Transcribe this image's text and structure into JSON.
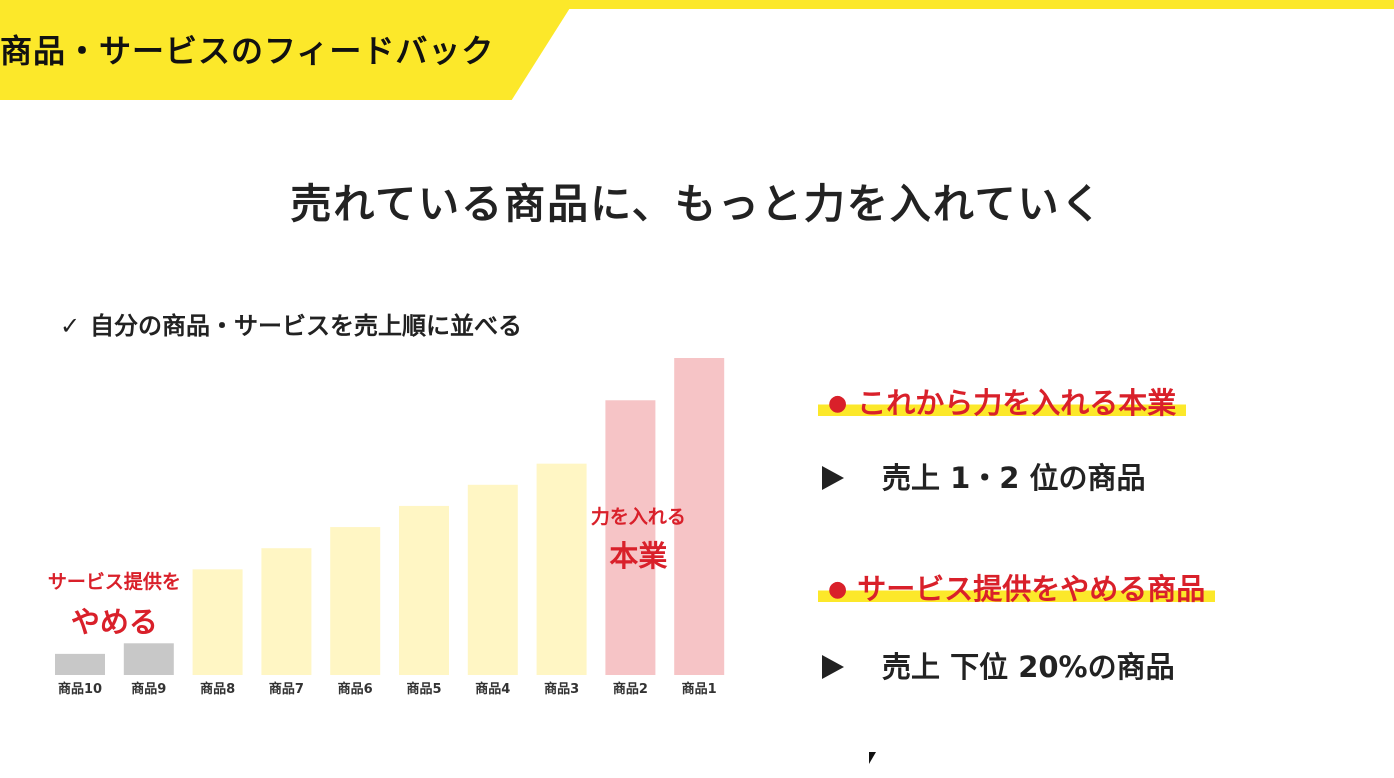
{
  "header": {
    "title": "商品・サービスのフィードバック"
  },
  "heading": "売れている商品に、もっと力を入れていく",
  "checklist": {
    "icon": "check-icon",
    "item": "自分の商品・サービスを売上順に並べる"
  },
  "chart_data": {
    "type": "bar",
    "categories": [
      "商品10",
      "商品9",
      "商品8",
      "商品7",
      "商品6",
      "商品5",
      "商品4",
      "商品3",
      "商品2",
      "商品1"
    ],
    "values": [
      2,
      3,
      10,
      12,
      14,
      16,
      18,
      20,
      26,
      30
    ],
    "groups": [
      "drop",
      "drop",
      "normal",
      "normal",
      "normal",
      "normal",
      "normal",
      "normal",
      "core",
      "core"
    ],
    "colors": {
      "drop": "#c8c8c8",
      "normal": "#fff6c4",
      "core": "#f6c4c6"
    },
    "ylim": [
      0,
      30
    ],
    "grid": false,
    "legend": "none",
    "annotations": {
      "drop": {
        "line1": "サービス提供を",
        "line2": "やめる"
      },
      "core": {
        "line1": "力を入れる",
        "line2": "本業"
      }
    }
  },
  "sections": {
    "core": {
      "bullet_icon": "red-dot-icon",
      "title": "これから力を入れる本業",
      "detail_icon": "play-icon",
      "detail": "売上 1・2 位の商品"
    },
    "drop": {
      "bullet_icon": "red-dot-icon",
      "title": "サービス提供をやめる商品",
      "detail_icon": "play-icon",
      "detail": "売上 下位 20%の商品"
    }
  },
  "colors": {
    "accent_yellow": "#fce82a",
    "accent_red": "#d9202a",
    "text_dark": "#222222"
  }
}
